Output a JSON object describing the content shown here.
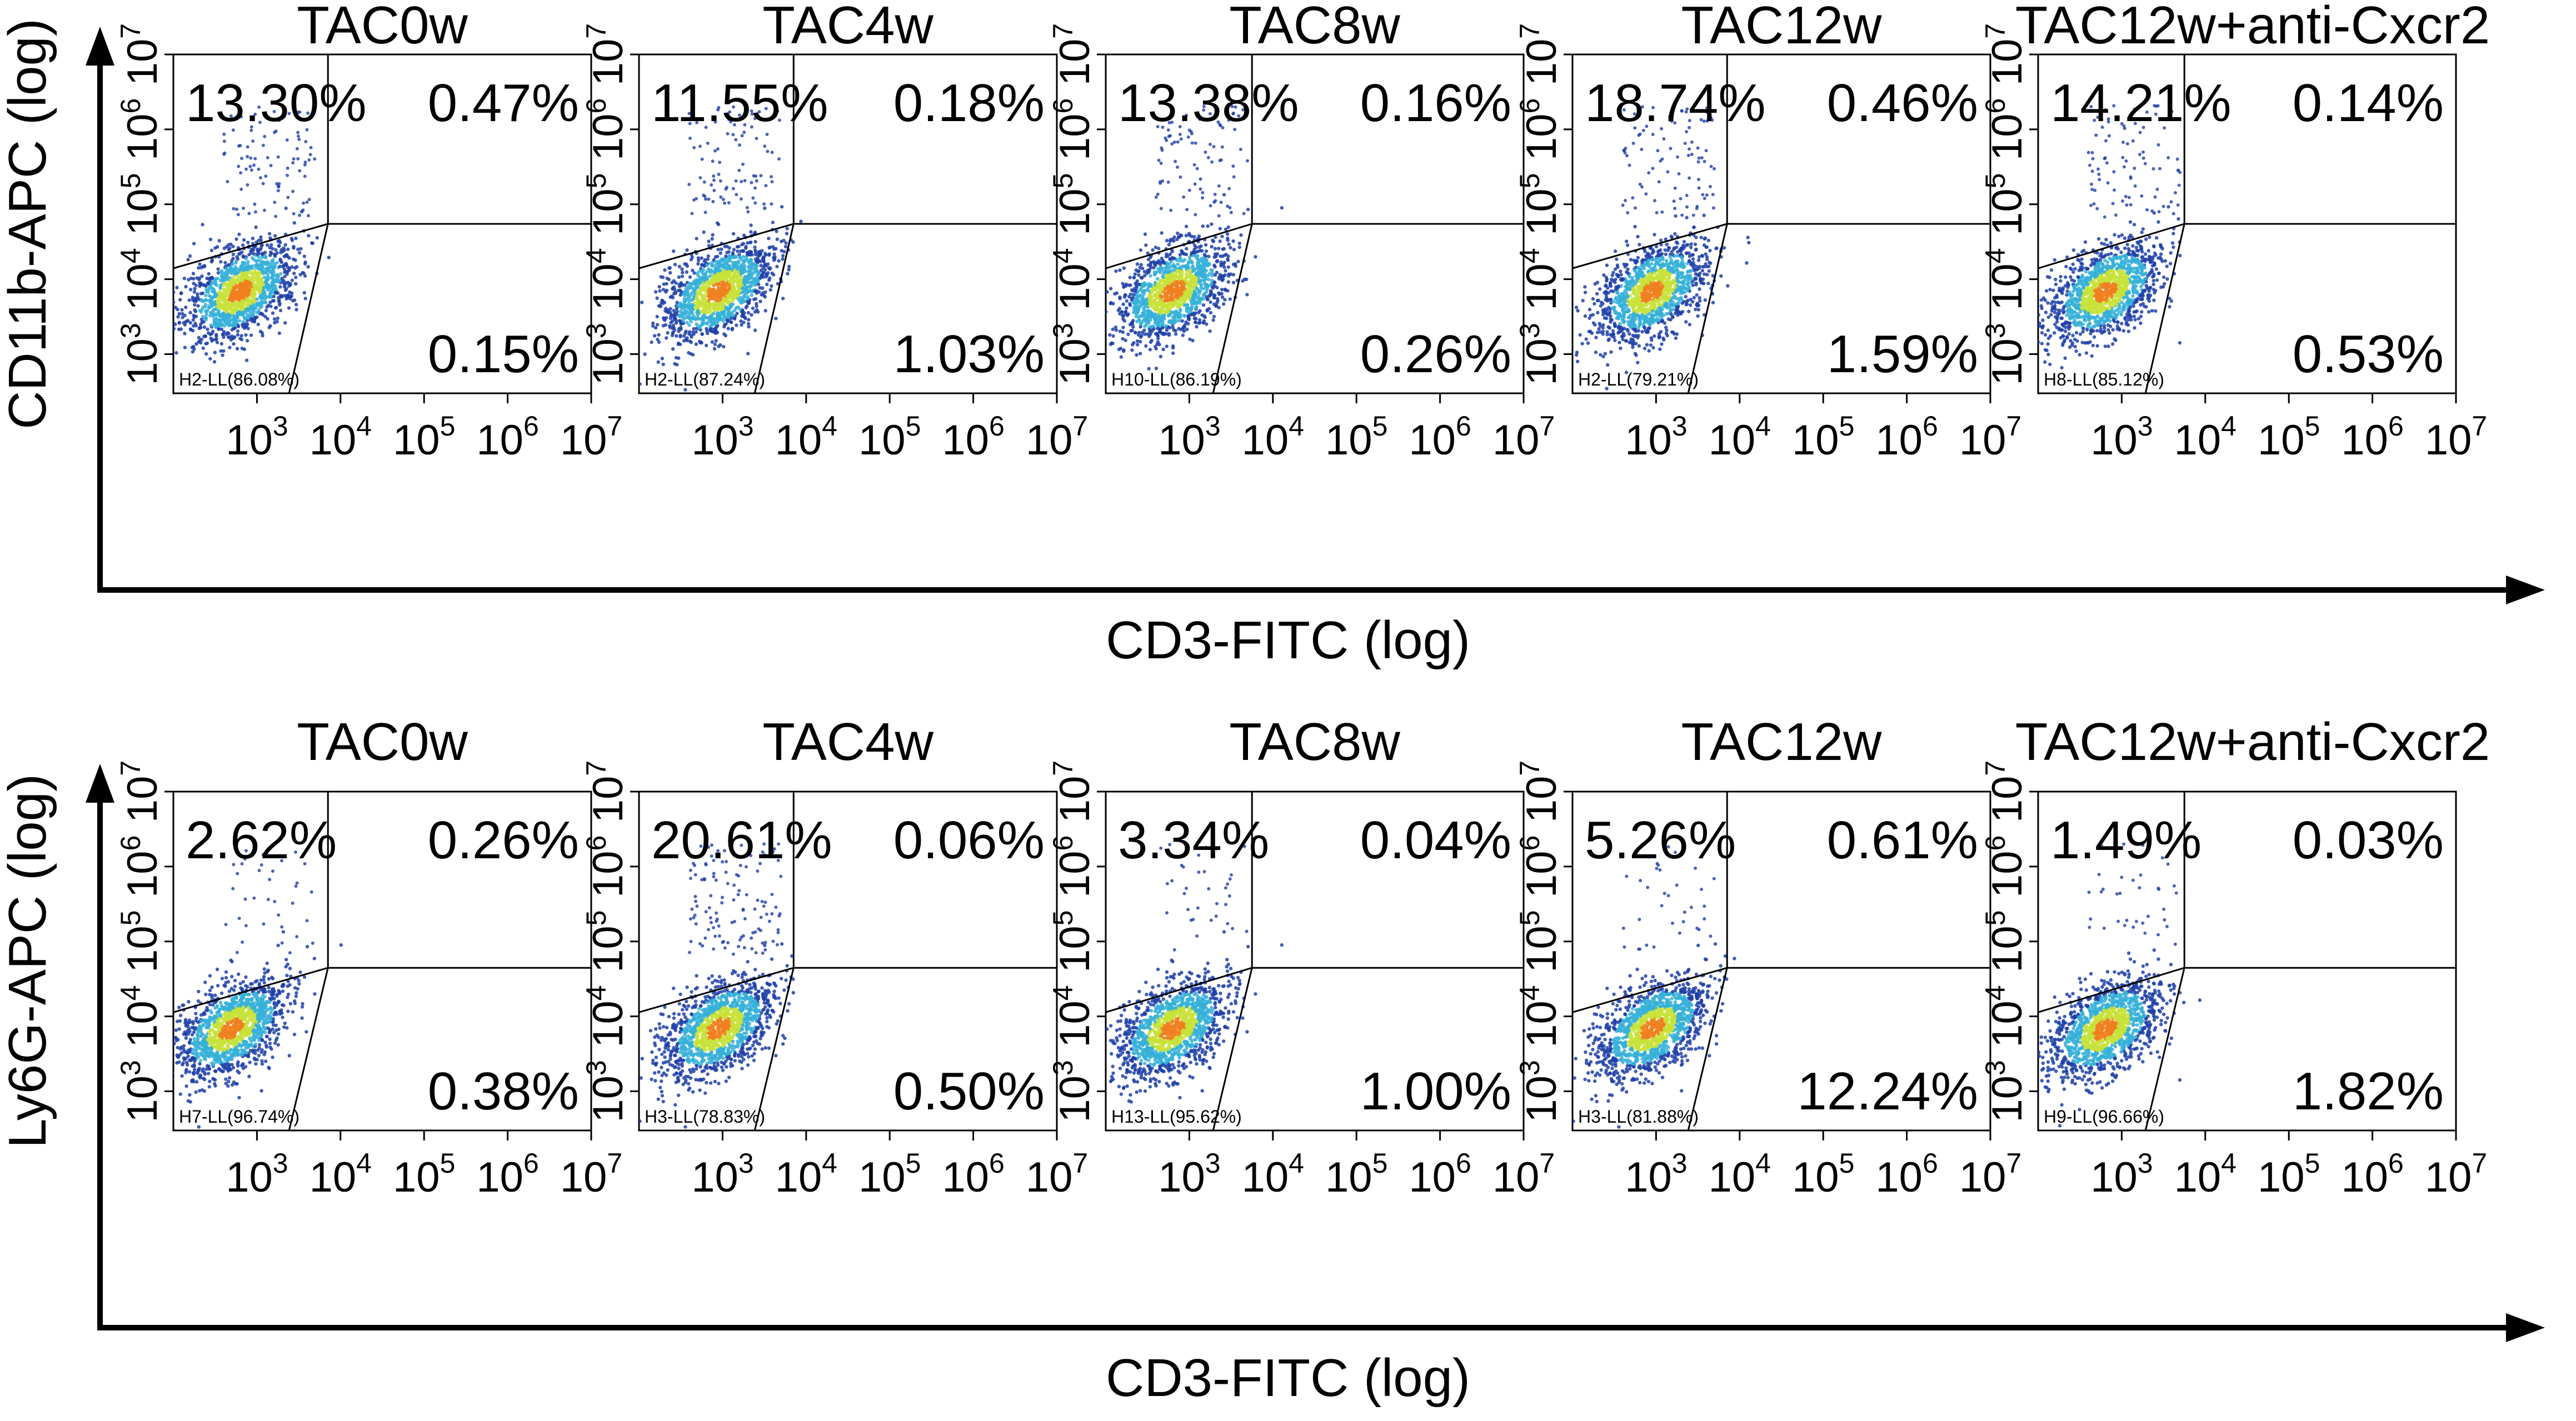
{
  "colors": {
    "background": "#ffffff",
    "axis": "#000000",
    "density_low": "#1f3fa8",
    "density_mid": "#35b0d8",
    "density_high": "#c8e23a",
    "density_peak": "#f07f1f"
  },
  "chart_data": [
    {
      "type": "scatter",
      "row": "top",
      "ylabel": "CD11b-APC (log)",
      "xlabel": "CD3-FITC (log)",
      "xscale": "log",
      "yscale": "log",
      "xlim": [
        100,
        10000000
      ],
      "ylim": [
        300,
        10000000
      ],
      "x_tick_labels": [
        "10^3",
        "10^4",
        "10^5",
        "10^6",
        "10^7"
      ],
      "y_tick_labels": [
        "10^3",
        "10^4",
        "10^5",
        "10^6",
        "10^7"
      ],
      "panels": [
        {
          "title": "TAC0w",
          "ul": "13.30%",
          "ur": "0.47%",
          "lr": "0.15%",
          "gate": "H2-LL(86.08%)"
        },
        {
          "title": "TAC4w",
          "ul": "11.55%",
          "ur": "0.18%",
          "lr": "1.03%",
          "gate": "H2-LL(87.24%)"
        },
        {
          "title": "TAC8w",
          "ul": "13.38%",
          "ur": "0.16%",
          "lr": "0.26%",
          "gate": "H10-LL(86.19%)"
        },
        {
          "title": "TAC12w",
          "ul": "18.74%",
          "ur": "0.46%",
          "lr": "1.59%",
          "gate": "H2-LL(79.21%)"
        },
        {
          "title": "TAC12w+anti-Cxcr2",
          "ul": "14.21%",
          "ur": "0.14%",
          "lr": "0.53%",
          "gate": "H8-LL(85.12%)"
        }
      ]
    },
    {
      "type": "scatter",
      "row": "bottom",
      "ylabel": "Ly6G-APC (log)",
      "xlabel": "CD3-FITC (log)",
      "xscale": "log",
      "yscale": "log",
      "xlim": [
        100,
        10000000
      ],
      "ylim": [
        300,
        10000000
      ],
      "x_tick_labels": [
        "10^3",
        "10^4",
        "10^5",
        "10^6",
        "10^7"
      ],
      "y_tick_labels": [
        "10^3",
        "10^4",
        "10^5",
        "10^6",
        "10^7"
      ],
      "panels": [
        {
          "title": "TAC0w",
          "ul": "2.62%",
          "ur": "0.26%",
          "lr": "0.38%",
          "gate": "H7-LL(96.74%)"
        },
        {
          "title": "TAC4w",
          "ul": "20.61%",
          "ur": "0.06%",
          "lr": "0.50%",
          "gate": "H3-LL(78.83%)"
        },
        {
          "title": "TAC8w",
          "ul": "3.34%",
          "ur": "0.04%",
          "lr": "1.00%",
          "gate": "H13-LL(95.62%)"
        },
        {
          "title": "TAC12w",
          "ul": "5.26%",
          "ur": "0.61%",
          "lr": "12.24%",
          "gate": "H3-LL(81.88%)"
        },
        {
          "title": "TAC12w+anti-Cxcr2",
          "ul": "1.49%",
          "ur": "0.03%",
          "lr": "1.82%",
          "gate": "H9-LL(96.66%)"
        }
      ]
    }
  ]
}
